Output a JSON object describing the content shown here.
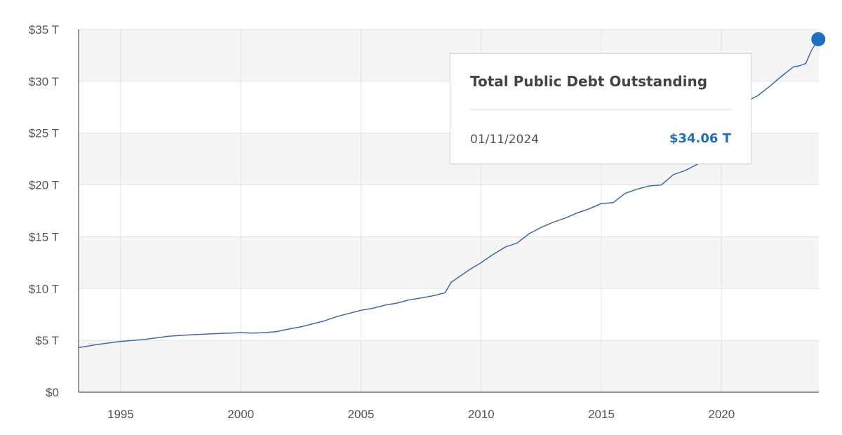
{
  "colors": {
    "line": "#3d6bb0",
    "marker": "#1f6fc0",
    "value_text": "#1f6fc0",
    "band": "#f5f5f5",
    "grid": "#e3e3e3",
    "axis": "#555555"
  },
  "chart_data": {
    "type": "line",
    "title": "",
    "xlabel": "",
    "ylabel": "",
    "xlim": [
      1993.25,
      2024.05
    ],
    "ylim": [
      0,
      35
    ],
    "grid": true,
    "y_ticks": [
      {
        "value": 0,
        "label": "$0"
      },
      {
        "value": 5,
        "label": "$5 T"
      },
      {
        "value": 10,
        "label": "$10 T"
      },
      {
        "value": 15,
        "label": "$15 T"
      },
      {
        "value": 20,
        "label": "$20 T"
      },
      {
        "value": 25,
        "label": "$25 T"
      },
      {
        "value": 30,
        "label": "$30 T"
      },
      {
        "value": 35,
        "label": "$35 T"
      }
    ],
    "x_ticks": [
      {
        "value": 1995,
        "label": "1995"
      },
      {
        "value": 2000,
        "label": "2000"
      },
      {
        "value": 2005,
        "label": "2005"
      },
      {
        "value": 2010,
        "label": "2010"
      },
      {
        "value": 2015,
        "label": "2015"
      },
      {
        "value": 2020,
        "label": "2020"
      }
    ],
    "series": [
      {
        "x": [
          1993.25,
          1994.0,
          1995.0,
          1996.0,
          1997.0,
          1998.0,
          1999.0,
          2000.0,
          2000.5,
          2001.0,
          2001.5,
          2002.0,
          2002.5,
          2003.0,
          2003.5,
          2004.0,
          2004.5,
          2005.0,
          2005.5,
          2006.0,
          2006.5,
          2007.0,
          2007.5,
          2008.0,
          2008.5,
          2008.75,
          2009.0,
          2009.5,
          2010.0,
          2010.5,
          2011.0,
          2011.5,
          2012.0,
          2012.5,
          2013.0,
          2013.5,
          2014.0,
          2014.5,
          2015.0,
          2015.5,
          2016.0,
          2016.5,
          2017.0,
          2017.5,
          2018.0,
          2018.5,
          2019.0,
          2019.5,
          2020.0,
          2020.3,
          2020.5,
          2021.0,
          2021.5,
          2022.0,
          2022.5,
          2023.0,
          2023.25,
          2023.5,
          2023.75,
          2024.03
        ],
        "y": [
          4.3,
          4.6,
          4.9,
          5.1,
          5.4,
          5.55,
          5.65,
          5.75,
          5.7,
          5.75,
          5.85,
          6.1,
          6.3,
          6.6,
          6.9,
          7.3,
          7.6,
          7.9,
          8.1,
          8.4,
          8.6,
          8.9,
          9.1,
          9.3,
          9.6,
          10.6,
          11.0,
          11.8,
          12.5,
          13.3,
          14.0,
          14.4,
          15.3,
          15.9,
          16.4,
          16.8,
          17.3,
          17.7,
          18.2,
          18.3,
          19.2,
          19.6,
          19.9,
          20.0,
          21.0,
          21.4,
          22.0,
          22.7,
          23.2,
          24.5,
          26.4,
          28.0,
          28.6,
          29.5,
          30.5,
          31.4,
          31.5,
          31.7,
          33.0,
          34.06
        ]
      }
    ],
    "highlight": {
      "x": 2024.03,
      "y": 34.06
    }
  },
  "tooltip": {
    "title": "Total Public Debt Outstanding",
    "date": "01/11/2024",
    "value": "$34.06 T"
  }
}
